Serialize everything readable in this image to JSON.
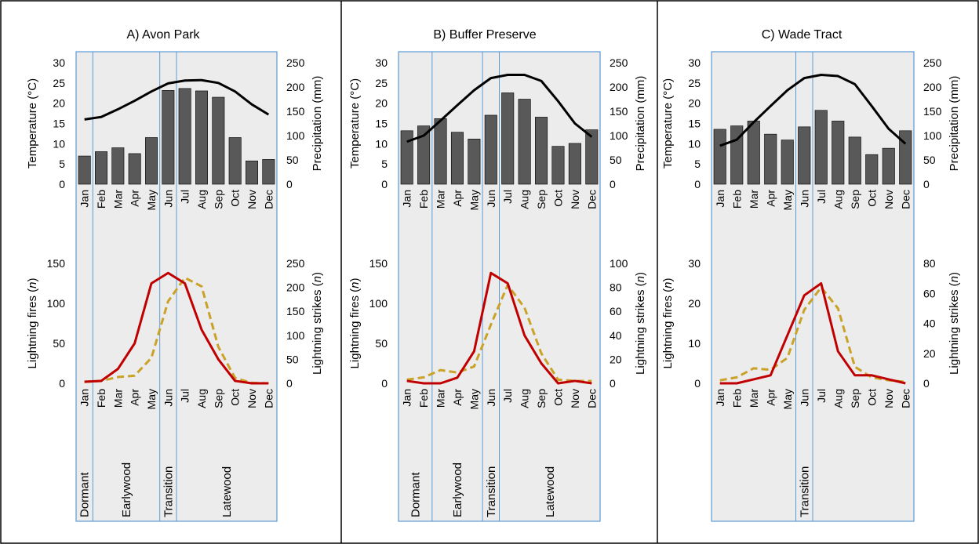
{
  "months": [
    "Jan",
    "Feb",
    "Mar",
    "Apr",
    "May",
    "Jun",
    "Jul",
    "Aug",
    "Sep",
    "Oct",
    "Nov",
    "Dec"
  ],
  "labels": {
    "temperature": "Temperature (°C)",
    "precipitation": "Precipitation (mm)",
    "fires_prefix": "Lightning fires (",
    "strikes_prefix": "Lightning strikes (",
    "n": "n",
    "close": ")"
  },
  "colors": {
    "panel_bg": "#ececec",
    "panel_border": "#5b9bd5",
    "bar": "#595959",
    "temp_line": "#000000",
    "fires_line": "#c00000",
    "strikes_line": "#c9a227"
  },
  "chart_data": [
    {
      "type": "bar",
      "title": "A) Avon Park",
      "categories": [
        "Jan",
        "Feb",
        "Mar",
        "Apr",
        "May",
        "Jun",
        "Jul",
        "Aug",
        "Sep",
        "Oct",
        "Nov",
        "Dec"
      ],
      "temp_axis": {
        "min": 0,
        "max": 30,
        "ticks": [
          0,
          5,
          10,
          15,
          20,
          25,
          30
        ]
      },
      "precip_axis": {
        "min": 0,
        "max": 250,
        "ticks": [
          0,
          50,
          100,
          150,
          200,
          250
        ]
      },
      "precipitation_mm": [
        58,
        67,
        75,
        63,
        96,
        193,
        197,
        192,
        179,
        96,
        48,
        51
      ],
      "temperature_c": [
        16,
        16.6,
        18.5,
        20.6,
        22.9,
        24.9,
        25.6,
        25.7,
        25,
        22.9,
        19.7,
        17.2
      ],
      "fires_axis": {
        "min": 0,
        "max": 150,
        "ticks": [
          0,
          50,
          100,
          150
        ]
      },
      "strikes_axis": {
        "min": 0,
        "max": 250,
        "ticks": [
          0,
          50,
          100,
          150,
          200,
          250
        ]
      },
      "lightning_fires": [
        2,
        3,
        18,
        50,
        125,
        138,
        125,
        67,
        30,
        3,
        0,
        0
      ],
      "lightning_strikes": [
        3,
        5,
        13,
        16,
        53,
        171,
        220,
        202,
        76,
        11,
        1,
        0
      ],
      "phases": [
        {
          "label": "Dormant",
          "from": 0,
          "to": 1
        },
        {
          "label": "Earlywood",
          "from": 1,
          "to": 5
        },
        {
          "label": "Transition",
          "from": 5,
          "to": 6
        },
        {
          "label": "Latewood",
          "from": 6,
          "to": 12
        }
      ]
    },
    {
      "type": "bar",
      "title": "B) Buffer Preserve",
      "categories": [
        "Jan",
        "Feb",
        "Mar",
        "Apr",
        "May",
        "Jun",
        "Jul",
        "Aug",
        "Sep",
        "Oct",
        "Nov",
        "Dec"
      ],
      "temp_axis": {
        "min": 0,
        "max": 30,
        "ticks": [
          0,
          5,
          10,
          15,
          20,
          25,
          30
        ]
      },
      "precip_axis": {
        "min": 0,
        "max": 250,
        "ticks": [
          0,
          50,
          100,
          150,
          200,
          250
        ]
      },
      "precipitation_mm": [
        110,
        120,
        135,
        107,
        93,
        142,
        188,
        175,
        138,
        78,
        84,
        112
      ],
      "temperature_c": [
        10.5,
        12,
        15.7,
        19.5,
        23.2,
        26.2,
        27,
        27,
        25.5,
        20.5,
        15,
        11.7
      ],
      "fires_axis": {
        "min": 0,
        "max": 150,
        "ticks": [
          0,
          50,
          100,
          150
        ]
      },
      "strikes_axis": {
        "min": 0,
        "max": 100,
        "ticks": [
          0,
          20,
          40,
          60,
          80,
          100
        ]
      },
      "lightning_fires": [
        3,
        0,
        0,
        7,
        40,
        138,
        125,
        60,
        25,
        0,
        3,
        0
      ],
      "lightning_strikes": [
        3,
        5,
        11,
        9,
        14,
        49,
        82,
        63,
        25,
        3,
        2,
        2
      ],
      "phases": [
        {
          "label": "Dormant",
          "from": 0,
          "to": 2
        },
        {
          "label": "Earlywood",
          "from": 2,
          "to": 5
        },
        {
          "label": "Transition",
          "from": 5,
          "to": 6
        },
        {
          "label": "Latewood",
          "from": 6,
          "to": 12
        }
      ]
    },
    {
      "type": "bar",
      "title": "C) Wade Tract",
      "categories": [
        "Jan",
        "Feb",
        "Mar",
        "Apr",
        "May",
        "Jun",
        "Jul",
        "Aug",
        "Sep",
        "Oct",
        "Nov",
        "Dec"
      ],
      "temp_axis": {
        "min": 0,
        "max": 30,
        "ticks": [
          0,
          5,
          10,
          15,
          20,
          25,
          30
        ]
      },
      "precip_axis": {
        "min": 0,
        "max": 250,
        "ticks": [
          0,
          50,
          100,
          150,
          200,
          250
        ]
      },
      "precipitation_mm": [
        113,
        120,
        130,
        103,
        91,
        118,
        152,
        130,
        97,
        61,
        74,
        110
      ],
      "temperature_c": [
        9.5,
        11,
        15.3,
        19.3,
        23.2,
        26.2,
        27,
        26.7,
        24.7,
        19.3,
        13.7,
        10
      ],
      "fires_axis": {
        "min": 0,
        "max": 30,
        "ticks": [
          0,
          10,
          20,
          30
        ]
      },
      "strikes_axis": {
        "min": 0,
        "max": 80,
        "ticks": [
          0,
          20,
          40,
          60,
          80
        ]
      },
      "lightning_fires": [
        0,
        0,
        1,
        2,
        12,
        22,
        25,
        8,
        2,
        2,
        1,
        0
      ],
      "lightning_strikes": [
        2,
        4,
        10,
        9,
        17,
        49,
        64,
        50,
        11,
        4,
        2,
        1
      ],
      "phases": [
        {
          "label": "Transition",
          "from": 5,
          "to": 6
        }
      ]
    }
  ]
}
